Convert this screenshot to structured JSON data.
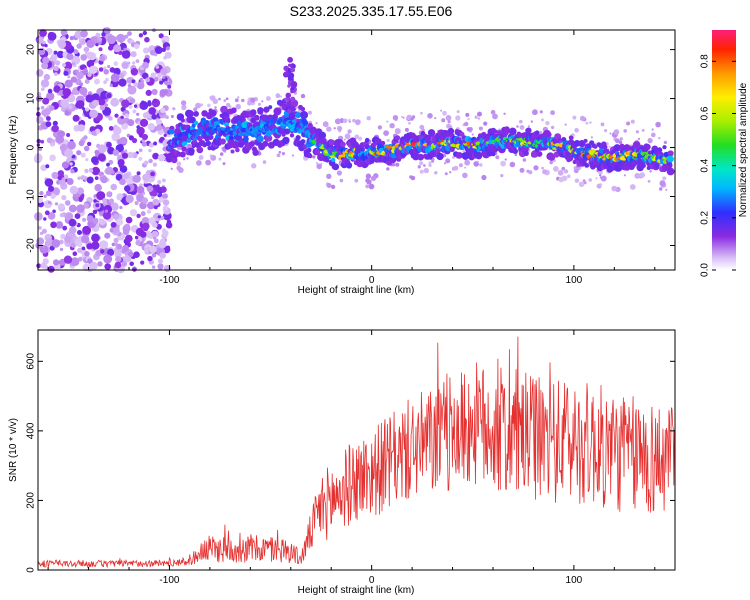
{
  "title": "S233.2025.335.17.55.E06",
  "chart_data": [
    {
      "type": "heatmap",
      "xlabel": "Height of straight line (km)",
      "ylabel": "Frequency (Hz)",
      "xlim": [
        -165,
        150
      ],
      "ylim": [
        -25,
        24
      ],
      "xticks": [
        -100,
        0,
        100
      ],
      "yticks": [
        -20,
        -10,
        0,
        10,
        20
      ],
      "x_ticklabels": [
        "-100",
        "0",
        "100"
      ],
      "y_ticklabels": [
        "-20",
        "-10",
        "0",
        "10",
        "20"
      ],
      "colorbar": {
        "label": "Normalized spectral amplitude",
        "range": [
          0,
          0.92
        ],
        "ticks": [
          0,
          0.2,
          0.4,
          0.6,
          0.8
        ],
        "ticklabels": [
          "0.0",
          "0.2",
          "0.4",
          "0.6",
          "0.8"
        ],
        "colormap": "rainbow"
      },
      "ridge": {
        "x": [
          -100,
          -90,
          -80,
          -70,
          -60,
          -50,
          -42,
          -37,
          -30,
          -25,
          -20,
          -15,
          -10,
          0,
          10,
          20,
          30,
          40,
          50,
          60,
          70,
          80,
          90,
          100,
          110,
          120,
          130,
          140,
          148
        ],
        "freq": [
          1.5,
          3,
          4,
          3.5,
          3,
          4,
          5.5,
          5,
          2,
          0.5,
          -1.5,
          -1.5,
          -1,
          -1,
          -0.5,
          0.5,
          0.5,
          1,
          0.5,
          1,
          1.5,
          1,
          0.5,
          -0.5,
          -1.5,
          -2,
          -1.5,
          -2,
          -2.5
        ],
        "amplitude": [
          0.2,
          0.25,
          0.3,
          0.3,
          0.3,
          0.35,
          0.35,
          0.3,
          0.4,
          0.55,
          0.7,
          0.8,
          0.85,
          0.85,
          0.8,
          0.9,
          0.9,
          0.85,
          0.8,
          0.75,
          0.7,
          0.7,
          0.75,
          0.8,
          0.8,
          0.85,
          0.8,
          0.7,
          0.6
        ]
      },
      "noise_region": {
        "x_range": [
          -165,
          -100
        ],
        "freq_range": [
          -25,
          24
        ],
        "amplitude": 0.1
      }
    },
    {
      "type": "line",
      "xlabel": "Height of straight line (km)",
      "ylabel": "SNR (10 * v/v)",
      "xlim": [
        -165,
        150
      ],
      "ylim": [
        0,
        690
      ],
      "xticks": [
        -100,
        0,
        100
      ],
      "yticks": [
        0,
        200,
        400,
        600
      ],
      "x_ticklabels": [
        "-100",
        "0",
        "100"
      ],
      "y_ticklabels": [
        "0",
        "200",
        "400",
        "600"
      ],
      "color": "#e53030",
      "series": [
        {
          "name": "SNR",
          "x": [
            -165,
            -140,
            -120,
            -100,
            -90,
            -85,
            -80,
            -70,
            -60,
            -50,
            -40,
            -35,
            -30,
            -25,
            -20,
            -10,
            0,
            10,
            20,
            30,
            40,
            50,
            60,
            70,
            80,
            90,
            100,
            110,
            120,
            130,
            140,
            150
          ],
          "mean": [
            18,
            18,
            18,
            20,
            25,
            50,
            60,
            60,
            60,
            60,
            55,
            30,
            110,
            180,
            200,
            250,
            280,
            310,
            350,
            370,
            390,
            420,
            400,
            390,
            380,
            370,
            370,
            360,
            340,
            330,
            320,
            310
          ],
          "spread": [
            10,
            10,
            10,
            10,
            12,
            30,
            40,
            40,
            40,
            40,
            35,
            20,
            60,
            100,
            110,
            120,
            130,
            140,
            150,
            160,
            170,
            180,
            190,
            190,
            180,
            180,
            180,
            180,
            180,
            170,
            170,
            160
          ]
        }
      ]
    }
  ]
}
